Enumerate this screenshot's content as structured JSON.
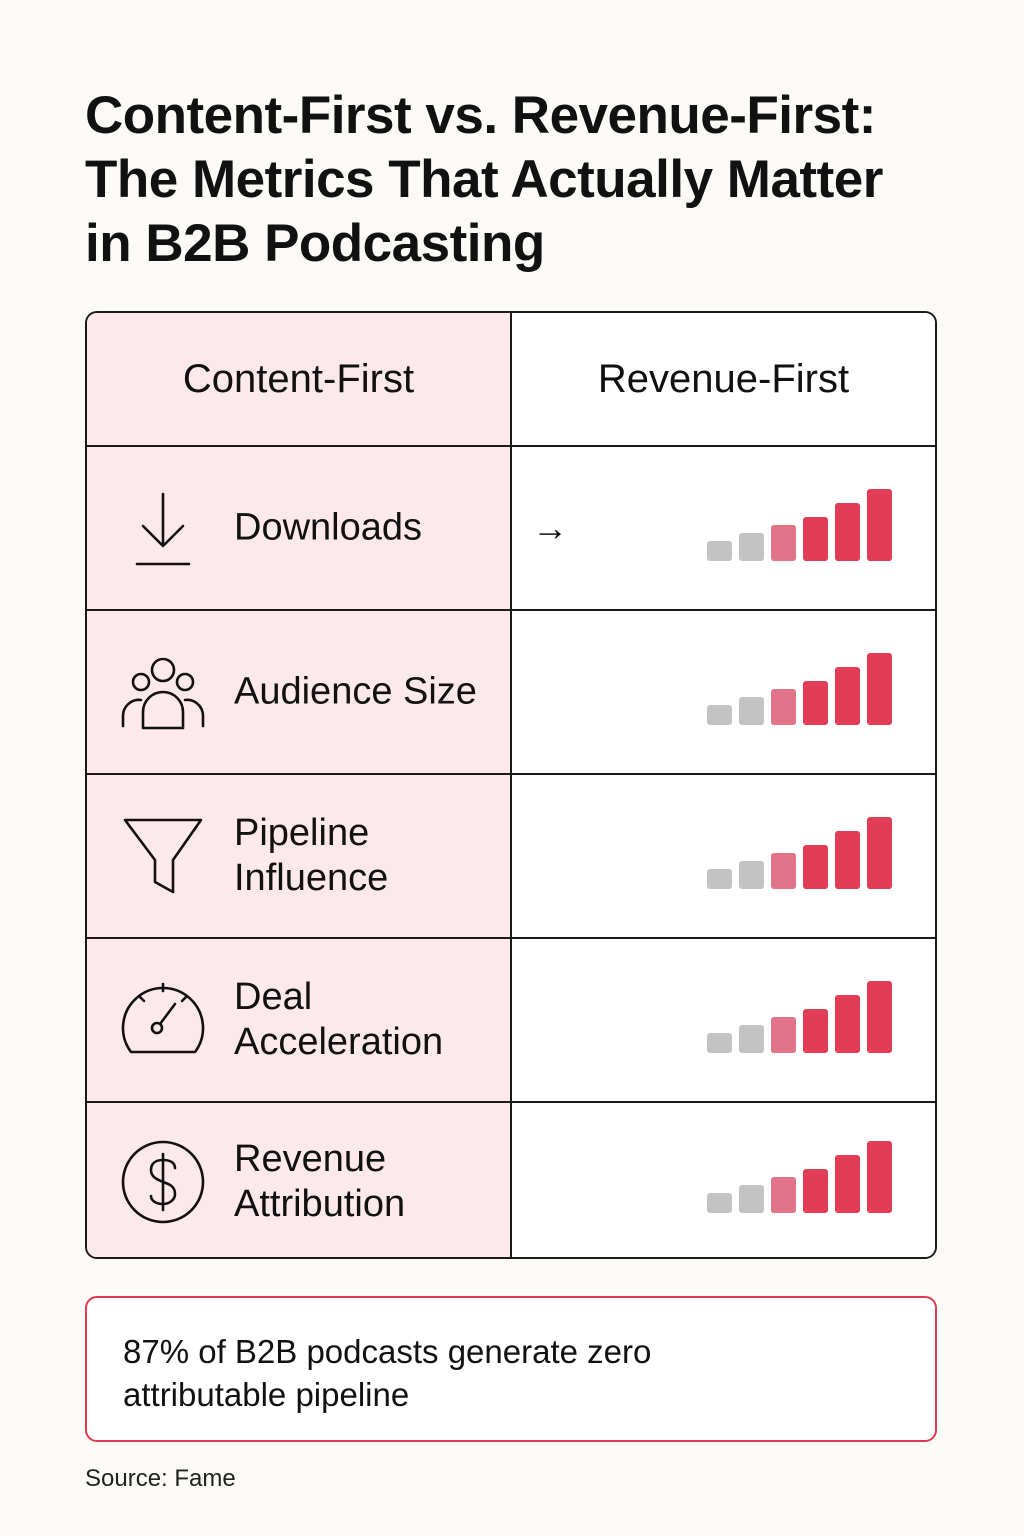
{
  "title_lines": [
    "Content-First vs. Revenue-First:",
    "The Metrics That Actually Matter",
    "in B2B Podcasting"
  ],
  "columns": {
    "left": "Content-First",
    "right": "Revenue-First"
  },
  "rows": [
    {
      "label": [
        "Downloads"
      ],
      "icon": "download-icon",
      "arrow": "→",
      "signal_level": 6
    },
    {
      "label": [
        "Audience Size"
      ],
      "icon": "audience-icon",
      "arrow": "",
      "signal_level": 6
    },
    {
      "label": [
        "Pipeline",
        "Influence"
      ],
      "icon": "funnel-icon",
      "arrow": "",
      "signal_level": 6
    },
    {
      "label": [
        "Deal",
        "Acceleration"
      ],
      "icon": "speedometer-icon",
      "arrow": "",
      "signal_level": 6
    },
    {
      "label": [
        "Revenue",
        "Attribution"
      ],
      "icon": "dollar-icon",
      "arrow": "",
      "signal_level": 6
    }
  ],
  "bar_colors": [
    "#c3c3c3",
    "#c3c3c3",
    "#e27489",
    "#e13d57",
    "#e13d57",
    "#e13d57"
  ],
  "callout": {
    "lines": [
      "87% of B2B podcasts generate zero",
      "attributable pipeline"
    ]
  },
  "source": "Source: Fame"
}
